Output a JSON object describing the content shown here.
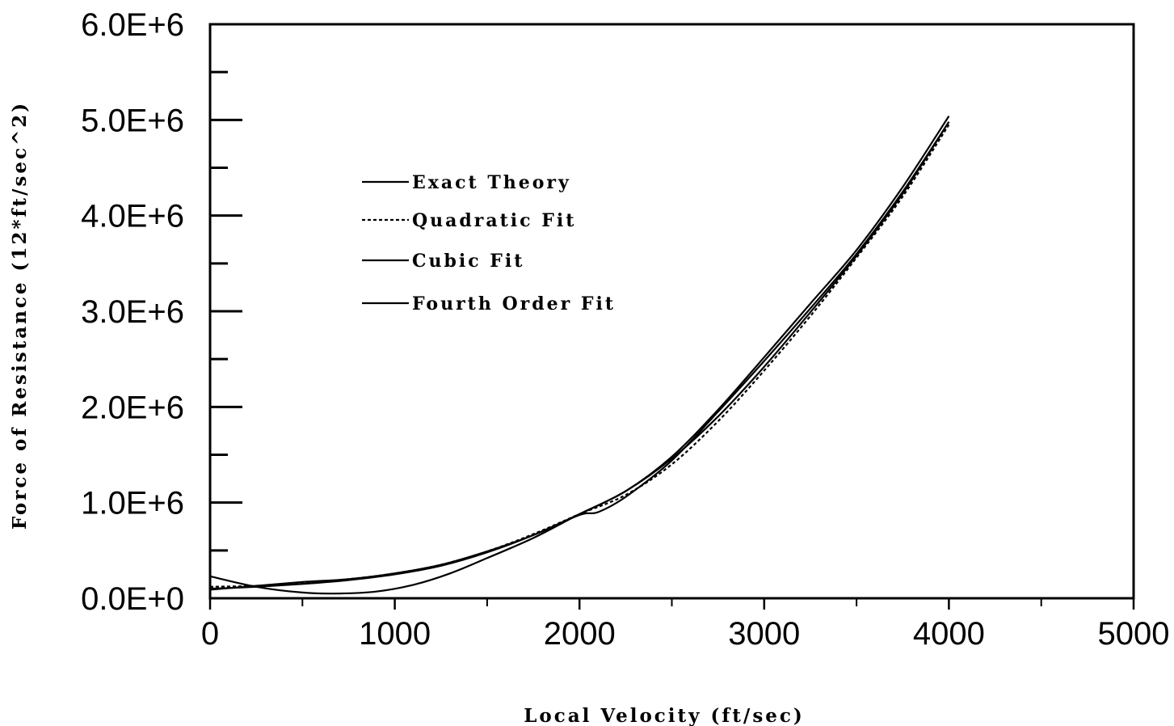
{
  "chart_data": {
    "type": "line",
    "title": "",
    "xlabel": "Local Velocity (ft/sec)",
    "ylabel": "Force of Resistance (12*ft/sec^2)",
    "xlim": [
      0,
      5000
    ],
    "ylim": [
      0,
      6000000
    ],
    "x_ticks": [
      0,
      1000,
      2000,
      3000,
      4000,
      5000
    ],
    "x_tick_labels": [
      "0",
      "1000",
      "2000",
      "3000",
      "4000",
      "5000"
    ],
    "y_ticks": [
      0,
      1000000,
      2000000,
      3000000,
      4000000,
      5000000,
      6000000
    ],
    "y_tick_labels": [
      "0.0E+0",
      "1.0E+6",
      "2.0E+6",
      "3.0E+6",
      "4.0E+6",
      "5.0E+6",
      "6.0E+6"
    ],
    "grid": false,
    "legend_position": "upper-left",
    "series": [
      {
        "name": "Exact Theory",
        "dash": "solid",
        "x": [
          0,
          250,
          500,
          750,
          1000,
          1250,
          1500,
          1750,
          2000,
          2100,
          2250,
          2500,
          2750,
          3000,
          3250,
          3500,
          3750,
          4000
        ],
        "y": [
          90000,
          130000,
          170000,
          200000,
          260000,
          350000,
          490000,
          660000,
          870000,
          900000,
          1060000,
          1440000,
          1950000,
          2480000,
          3030000,
          3600000,
          4250000,
          4980000
        ]
      },
      {
        "name": "Quadratic Fit",
        "dash": "dashed",
        "x": [
          0,
          250,
          500,
          750,
          1000,
          1250,
          1500,
          1750,
          2000,
          2250,
          2500,
          2750,
          3000,
          3250,
          3500,
          3750,
          4000
        ],
        "y": [
          120000,
          130000,
          160000,
          200000,
          260000,
          350000,
          490000,
          670000,
          880000,
          1080000,
          1400000,
          1850000,
          2380000,
          2950000,
          3560000,
          4200000,
          4950000
        ]
      },
      {
        "name": "Cubic Fit",
        "dash": "solid",
        "x": [
          0,
          250,
          500,
          750,
          1000,
          1250,
          1500,
          1750,
          2000,
          2250,
          2500,
          2750,
          3000,
          3250,
          3500,
          3750,
          4000
        ],
        "y": [
          100000,
          120000,
          150000,
          190000,
          250000,
          340000,
          480000,
          660000,
          880000,
          1120000,
          1460000,
          1900000,
          2420000,
          2990000,
          3580000,
          4230000,
          4980000
        ]
      },
      {
        "name": "Fourth Order Fit",
        "dash": "solid",
        "x": [
          0,
          250,
          500,
          700,
          900,
          1100,
          1300,
          1500,
          1750,
          2000,
          2250,
          2500,
          2750,
          3000,
          3250,
          3500,
          3750,
          4000
        ],
        "y": [
          230000,
          120000,
          60000,
          50000,
          70000,
          140000,
          260000,
          420000,
          630000,
          880000,
          1120000,
          1480000,
          1970000,
          2520000,
          3080000,
          3640000,
          4300000,
          5040000
        ]
      }
    ]
  }
}
